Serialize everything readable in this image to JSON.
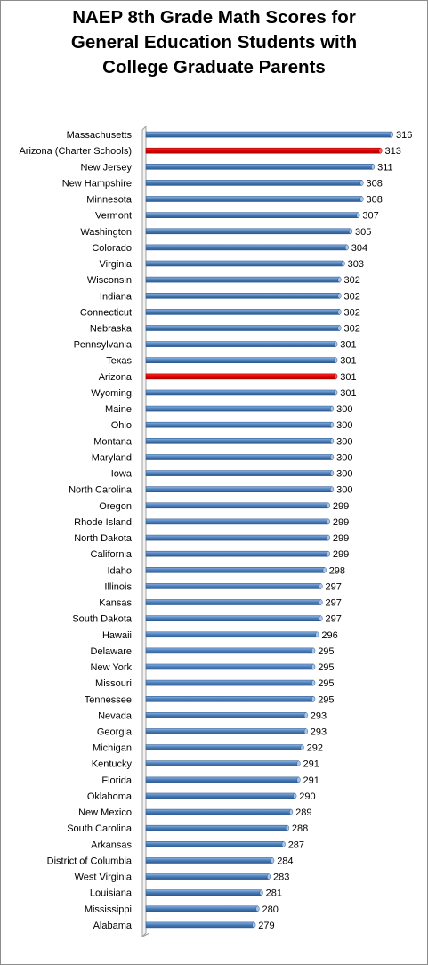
{
  "chart_data": {
    "type": "bar",
    "orientation": "horizontal",
    "title_lines": [
      "NAEP 8th Grade Math Scores for",
      "General Education Students with",
      "College Graduate Parents"
    ],
    "xlabel": "",
    "ylabel": "",
    "xlim": [
      250,
      316
    ],
    "grid": false,
    "legend": "none",
    "colors": {
      "bar": "#4a7ebb",
      "highlight": "#e00000",
      "axis": "#a0a0a0",
      "text": "#000000"
    },
    "highlighted": [
      "Arizona (Charter Schools)",
      "Arizona"
    ],
    "categories": [
      "Massachusetts",
      "Arizona (Charter Schools)",
      "New Jersey",
      "New Hampshire",
      "Minnesota",
      "Vermont",
      "Washington",
      "Colorado",
      "Virginia",
      "Wisconsin",
      "Indiana",
      "Connecticut",
      "Nebraska",
      "Pennsylvania",
      "Texas",
      "Arizona",
      "Wyoming",
      "Maine",
      "Ohio",
      "Montana",
      "Maryland",
      "Iowa",
      "North Carolina",
      "Oregon",
      "Rhode Island",
      "North Dakota",
      "California",
      "Idaho",
      "Illinois",
      "Kansas",
      "South Dakota",
      "Hawaii",
      "Delaware",
      "New York",
      "Missouri",
      "Tennessee",
      "Nevada",
      "Georgia",
      "Michigan",
      "Kentucky",
      "Florida",
      "Oklahoma",
      "New Mexico",
      "South Carolina",
      "Arkansas",
      "District of Columbia",
      "West Virginia",
      "Louisiana",
      "Mississippi",
      "Alabama"
    ],
    "values": [
      316,
      313,
      311,
      308,
      308,
      307,
      305,
      304,
      303,
      302,
      302,
      302,
      302,
      301,
      301,
      301,
      301,
      300,
      300,
      300,
      300,
      300,
      300,
      299,
      299,
      299,
      299,
      298,
      297,
      297,
      297,
      296,
      295,
      295,
      295,
      295,
      293,
      293,
      292,
      291,
      291,
      290,
      289,
      288,
      287,
      284,
      283,
      281,
      280,
      279
    ]
  }
}
